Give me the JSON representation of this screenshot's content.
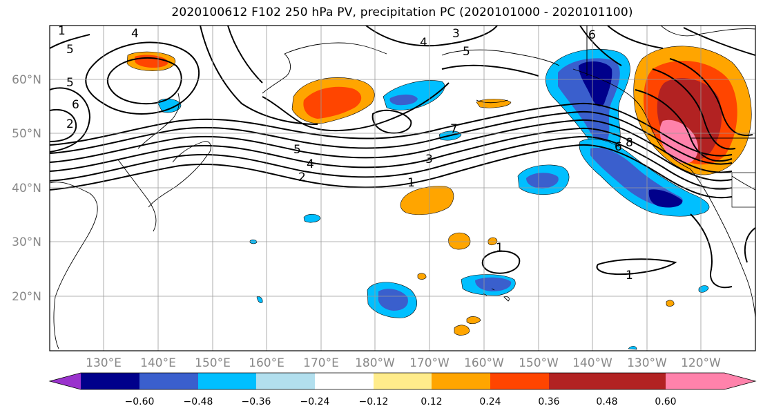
{
  "title": "2020100612 F102 250 hPa PV, precipitation PC (2020101000 - 2020101100)",
  "lat_ticks": [
    "60°N",
    "50°N",
    "40°N",
    "30°N",
    "20°N"
  ],
  "lon_ticks": [
    "130°E",
    "140°E",
    "150°E",
    "160°E",
    "170°E",
    "180°W",
    "170°W",
    "160°W",
    "150°W",
    "140°W",
    "130°W",
    "120°W"
  ],
  "colorbar": {
    "colors": [
      "#9a32cd",
      "#00008b",
      "#3a5fcd",
      "#00bfff",
      "#b2dfee",
      "#ffffff",
      "#ffec8b",
      "#ffa500",
      "#ff4500",
      "#b22222",
      "#ff82ab"
    ],
    "labels": [
      "−0.60",
      "−0.48",
      "−0.36",
      "−0.24",
      "−0.12",
      "0.12",
      "0.24",
      "0.36",
      "0.48",
      "0.60"
    ]
  },
  "contour_labels": [
    {
      "text": "1"
    },
    {
      "text": "2"
    },
    {
      "text": "3"
    },
    {
      "text": "4"
    },
    {
      "text": "5"
    },
    {
      "text": "6"
    },
    {
      "text": "7"
    },
    {
      "text": "8"
    },
    {
      "text": "5"
    },
    {
      "text": "6"
    },
    {
      "text": "5"
    },
    {
      "text": "4"
    },
    {
      "text": "1"
    },
    {
      "text": "1"
    },
    {
      "text": "1"
    },
    {
      "text": "2"
    },
    {
      "text": "6"
    },
    {
      "text": "4"
    },
    {
      "text": "3"
    },
    {
      "text": "5"
    }
  ]
}
